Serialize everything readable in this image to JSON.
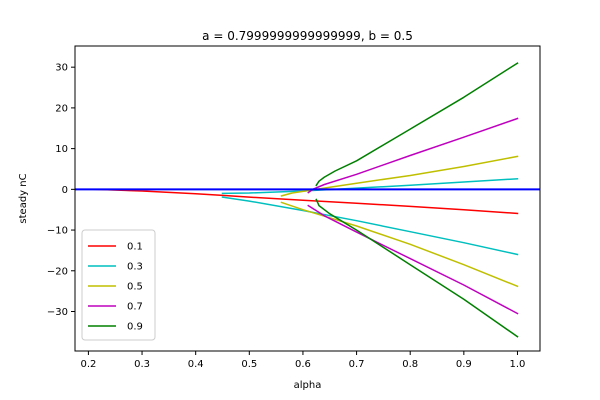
{
  "chart_data": {
    "type": "line",
    "title": "a = 0.7999999999999999, b = 0.5",
    "xlabel": "alpha",
    "ylabel": "steady nC",
    "xlim": [
      0.175,
      1.042
    ],
    "ylim": [
      -39.7,
      35.2
    ],
    "xticks": [
      "0.2",
      "0.3",
      "0.4",
      "0.5",
      "0.6",
      "0.7",
      "0.8",
      "0.9",
      "1.0"
    ],
    "yticks": [
      "−30",
      "−20",
      "−10",
      "0",
      "10",
      "20",
      "30"
    ],
    "grid": false,
    "legend_position": "lower-left",
    "hline": {
      "y": 0,
      "color": "#0000ff"
    },
    "series": [
      {
        "name": "0.1",
        "color": "#ff0000",
        "branches": [
          {
            "x": [
              0.21,
              0.3,
              0.4,
              0.45,
              0.5,
              0.6,
              0.7,
              0.8,
              0.9,
              1.0
            ],
            "y": [
              0.0,
              -0.4,
              -1.1,
              -1.5,
              -1.9,
              -2.7,
              -3.4,
              -4.2,
              -5.0,
              -5.9
            ]
          }
        ]
      },
      {
        "name": "0.3",
        "color": "#00bfbf",
        "branches": [
          {
            "x": [
              0.45,
              0.5,
              0.6,
              0.7,
              0.8,
              0.9,
              1.0
            ],
            "y": [
              -1.9,
              -2.9,
              -5.2,
              -7.7,
              -10.4,
              -13.1,
              -16.0
            ]
          },
          {
            "x": [
              0.45,
              0.5,
              0.6,
              0.7,
              0.8,
              0.9,
              1.0
            ],
            "y": [
              -1.0,
              -0.9,
              -0.4,
              0.3,
              1.0,
              1.8,
              2.6
            ]
          }
        ]
      },
      {
        "name": "0.5",
        "color": "#bfbf00",
        "branches": [
          {
            "x": [
              0.56,
              0.6,
              0.65,
              0.7,
              0.8,
              0.9,
              1.0
            ],
            "y": [
              -3.2,
              -5.0,
              -7.0,
              -9.0,
              -13.5,
              -18.5,
              -23.8
            ]
          },
          {
            "x": [
              0.56,
              0.58,
              0.6,
              0.65,
              0.7,
              0.8,
              0.9,
              1.0
            ],
            "y": [
              -1.6,
              -0.9,
              -0.5,
              0.5,
              1.5,
              3.4,
              5.6,
              8.1
            ]
          }
        ]
      },
      {
        "name": "0.7",
        "color": "#bf00bf",
        "branches": [
          {
            "x": [
              0.61,
              0.64,
              0.7,
              0.8,
              0.9,
              1.0
            ],
            "y": [
              -4.0,
              -6.5,
              -10.5,
              -17.0,
              -23.5,
              -30.5
            ]
          },
          {
            "x": [
              0.61,
              0.62,
              0.64,
              0.7,
              0.8,
              0.9,
              1.0
            ],
            "y": [
              -0.8,
              0.1,
              1.2,
              3.7,
              8.3,
              12.8,
              17.4
            ]
          }
        ]
      },
      {
        "name": "0.9",
        "color": "#008000",
        "branches": [
          {
            "x": [
              0.625,
              0.63,
              0.65,
              0.7,
              0.8,
              0.9,
              1.0
            ],
            "y": [
              -2.5,
              -4.0,
              -6.0,
              -10.0,
              -18.5,
              -27.0,
              -36.2
            ]
          },
          {
            "x": [
              0.625,
              0.63,
              0.64,
              0.66,
              0.7,
              0.8,
              0.9,
              1.0
            ],
            "y": [
              1.0,
              2.0,
              3.0,
              4.5,
              7.0,
              14.8,
              22.6,
              31.0
            ]
          }
        ]
      }
    ]
  }
}
